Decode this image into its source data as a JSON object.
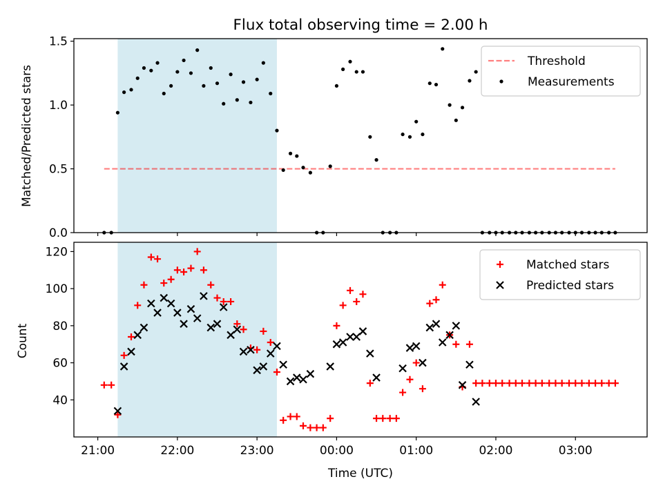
{
  "figure": {
    "title": "Flux total observing time = 2.00 h",
    "xlabel": "Time (UTC)",
    "x_ticks": [
      "21:00",
      "22:00",
      "23:00",
      "00:00",
      "01:00",
      "02:00",
      "03:00"
    ],
    "x_tick_hours": [
      21,
      22,
      23,
      24,
      25,
      26,
      27
    ],
    "x_range_hours": [
      20.7,
      27.9
    ],
    "shaded_interval_hours": [
      21.25,
      23.25
    ],
    "colors": {
      "shade": "#add8e6",
      "threshold": "#ff0000",
      "measurement": "#000000",
      "matched": "#ff0000",
      "predicted": "#000000"
    }
  },
  "chart_data": [
    {
      "type": "scatter",
      "panel": "top",
      "ylabel": "Matched/Predicted stars",
      "ylim": [
        0,
        1.52
      ],
      "y_ticks": [
        "0.0",
        "0.5",
        "1.0",
        "1.5"
      ],
      "y_tick_values": [
        0,
        0.5,
        1.0,
        1.5
      ],
      "legend": {
        "placement": "top-right",
        "entries": [
          "Threshold",
          "Measurements"
        ]
      },
      "threshold": {
        "name": "Threshold",
        "value": 0.5,
        "x_range": [
          21.08,
          27.5
        ],
        "style": "dashed"
      },
      "series": [
        {
          "name": "Measurements",
          "x": [
            21.08,
            21.17,
            21.25,
            21.33,
            21.42,
            21.5,
            21.58,
            21.67,
            21.75,
            21.83,
            21.92,
            22.0,
            22.08,
            22.17,
            22.25,
            22.33,
            22.42,
            22.5,
            22.58,
            22.67,
            22.75,
            22.83,
            22.92,
            23.0,
            23.08,
            23.17,
            23.25,
            23.33,
            23.42,
            23.5,
            23.58,
            23.67,
            23.75,
            23.83,
            23.92,
            24.0,
            24.08,
            24.17,
            24.25,
            24.33,
            24.42,
            24.5,
            24.58,
            24.67,
            24.75,
            24.83,
            24.92,
            25.0,
            25.08,
            25.17,
            25.25,
            25.33,
            25.42,
            25.5,
            25.58,
            25.67,
            25.75,
            25.83,
            25.92,
            26.0,
            26.08,
            26.17,
            26.25,
            26.33,
            26.42,
            26.5,
            26.58,
            26.67,
            26.75,
            26.83,
            26.92,
            27.0,
            27.08,
            27.17,
            27.25,
            27.33,
            27.42,
            27.5
          ],
          "values": [
            0.0,
            0.0,
            0.94,
            1.1,
            1.12,
            1.21,
            1.29,
            1.27,
            1.33,
            1.09,
            1.15,
            1.26,
            1.35,
            1.25,
            1.43,
            1.15,
            1.29,
            1.17,
            1.01,
            1.24,
            1.04,
            1.18,
            1.02,
            1.2,
            1.33,
            1.09,
            0.8,
            0.49,
            0.62,
            0.6,
            0.51,
            0.47,
            0.0,
            0.0,
            0.52,
            1.15,
            1.28,
            1.34,
            1.26,
            1.26,
            0.75,
            0.57,
            0.0,
            0.0,
            0.0,
            0.77,
            0.75,
            0.87,
            0.77,
            1.17,
            1.16,
            1.44,
            1.0,
            0.88,
            0.98,
            1.19,
            1.26,
            0.0,
            0.0,
            0.0,
            0.0,
            0.0,
            0.0,
            0.0,
            0.0,
            0.0,
            0.0,
            0.0,
            0.0,
            0.0,
            0.0,
            0.0,
            0.0,
            0.0,
            0.0,
            0.0,
            0.0,
            0.0
          ]
        }
      ]
    },
    {
      "type": "scatter",
      "panel": "bottom",
      "ylabel": "Count",
      "ylim": [
        20,
        125
      ],
      "y_ticks": [
        "40",
        "60",
        "80",
        "100",
        "120"
      ],
      "y_tick_values": [
        40,
        60,
        80,
        100,
        120
      ],
      "legend": {
        "placement": "top-right",
        "entries": [
          "Matched stars",
          "Predicted stars"
        ]
      },
      "series": [
        {
          "name": "Matched stars",
          "marker": "plus",
          "x": [
            21.08,
            21.17,
            21.25,
            21.33,
            21.42,
            21.5,
            21.58,
            21.67,
            21.75,
            21.83,
            21.92,
            22.0,
            22.08,
            22.17,
            22.25,
            22.33,
            22.42,
            22.5,
            22.58,
            22.67,
            22.75,
            22.83,
            22.92,
            23.0,
            23.08,
            23.17,
            23.25,
            23.33,
            23.42,
            23.5,
            23.58,
            23.67,
            23.75,
            23.83,
            23.92,
            24.0,
            24.08,
            24.17,
            24.25,
            24.33,
            24.42,
            24.5,
            24.58,
            24.67,
            24.75,
            24.83,
            24.92,
            25.0,
            25.08,
            25.17,
            25.25,
            25.33,
            25.42,
            25.5,
            25.58,
            25.67,
            25.75,
            25.83,
            25.92,
            26.0,
            26.08,
            26.17,
            26.25,
            26.33,
            26.42,
            26.5,
            26.58,
            26.67,
            26.75,
            26.83,
            26.92,
            27.0,
            27.08,
            27.17,
            27.25,
            27.33,
            27.42,
            27.5
          ],
          "values": [
            48,
            48,
            32,
            64,
            74,
            91,
            102,
            117,
            116,
            103,
            105,
            110,
            109,
            111,
            120,
            110,
            102,
            95,
            93,
            93,
            81,
            78,
            68,
            67,
            77,
            71,
            55,
            29,
            31,
            31,
            26,
            25,
            25,
            25,
            30,
            80,
            91,
            99,
            93,
            97,
            49,
            30,
            30,
            30,
            30,
            44,
            51,
            60,
            46,
            92,
            94,
            102,
            75,
            70,
            47,
            70,
            49,
            49,
            49,
            49,
            49,
            49,
            49,
            49,
            49,
            49,
            49,
            49,
            49,
            49,
            49,
            49,
            49,
            49,
            49,
            49,
            49,
            49
          ]
        },
        {
          "name": "Predicted stars",
          "marker": "x",
          "x": [
            21.25,
            21.33,
            21.42,
            21.5,
            21.58,
            21.67,
            21.75,
            21.83,
            21.92,
            22.0,
            22.08,
            22.17,
            22.25,
            22.33,
            22.42,
            22.5,
            22.58,
            22.67,
            22.75,
            22.83,
            22.92,
            23.0,
            23.08,
            23.17,
            23.25,
            23.33,
            23.42,
            23.5,
            23.58,
            23.67,
            23.92,
            24.0,
            24.08,
            24.17,
            24.25,
            24.33,
            24.42,
            24.5,
            24.83,
            24.92,
            25.0,
            25.08,
            25.17,
            25.25,
            25.33,
            25.42,
            25.5,
            25.58,
            25.67,
            25.75
          ],
          "values": [
            34,
            58,
            66,
            75,
            79,
            92,
            87,
            95,
            92,
            87,
            81,
            89,
            84,
            96,
            79,
            81,
            90,
            75,
            78,
            66,
            67,
            56,
            58,
            65,
            69,
            59,
            50,
            52,
            51,
            54,
            58,
            70,
            71,
            74,
            74,
            77,
            65,
            52,
            57,
            68,
            69,
            60,
            79,
            81,
            71,
            75,
            80,
            48,
            59,
            39
          ]
        }
      ]
    }
  ]
}
